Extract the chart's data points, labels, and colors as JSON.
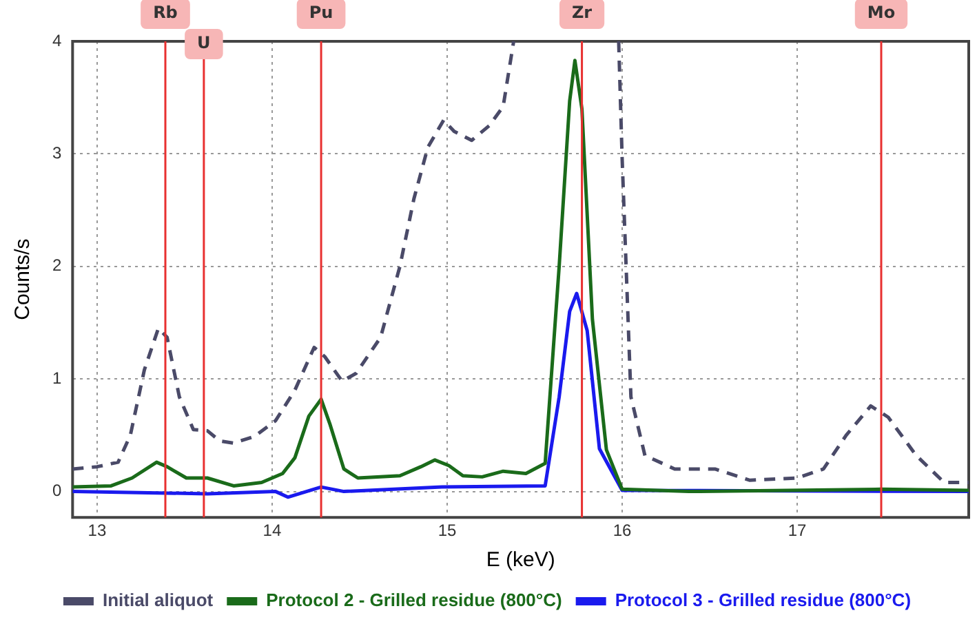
{
  "chart_data": {
    "type": "line",
    "xlabel": "E (keV)",
    "ylabel": "Counts/s",
    "xlim": [
      12.86,
      17.98
    ],
    "ylim": [
      -0.23,
      4
    ],
    "xticks": [
      13,
      14,
      15,
      16,
      17
    ],
    "yticks": [
      0,
      1,
      2,
      3,
      4
    ],
    "grid": true,
    "legend": "bottom",
    "marker": "none",
    "series": [
      {
        "name": "Initial aliquot",
        "color": "#4a4a68",
        "line_style": "dashed",
        "x": [
          12.86,
          13.0,
          13.12,
          13.19,
          13.27,
          13.35,
          13.4,
          13.47,
          13.55,
          13.63,
          13.7,
          13.78,
          13.9,
          14.02,
          14.13,
          14.24,
          14.3,
          14.4,
          14.48,
          14.62,
          14.73,
          14.81,
          14.89,
          14.98,
          15.04,
          15.14,
          15.24,
          15.32,
          15.38,
          15.7,
          15.98,
          16.0,
          16.05,
          16.13,
          16.3,
          16.53,
          16.73,
          17.0,
          17.15,
          17.28,
          17.42,
          17.52,
          17.68,
          17.84,
          17.98
        ],
        "values": [
          0.2,
          0.22,
          0.26,
          0.5,
          1.08,
          1.45,
          1.37,
          0.84,
          0.55,
          0.54,
          0.45,
          0.43,
          0.49,
          0.63,
          0.9,
          1.28,
          1.2,
          0.98,
          1.05,
          1.37,
          2.0,
          2.6,
          3.06,
          3.3,
          3.2,
          3.12,
          3.25,
          3.42,
          4,
          null,
          4,
          2.95,
          0.84,
          0.32,
          0.2,
          0.2,
          0.1,
          0.12,
          0.2,
          0.5,
          0.76,
          0.66,
          0.32,
          0.08,
          0.08
        ]
      },
      {
        "name": "Protocol 2 - Grilled residue (800°C)",
        "color": "#1a6b1a",
        "line_style": "solid",
        "x": [
          12.86,
          13.08,
          13.2,
          13.34,
          13.4,
          13.51,
          13.63,
          13.78,
          13.94,
          14.06,
          14.13,
          14.21,
          14.28,
          14.33,
          14.41,
          14.49,
          14.73,
          14.85,
          14.93,
          15.01,
          15.09,
          15.2,
          15.32,
          15.45,
          15.56,
          15.64,
          15.7,
          15.73,
          15.77,
          15.83,
          15.91,
          16.0,
          16.38,
          17.48,
          17.98
        ],
        "values": [
          0.04,
          0.05,
          0.12,
          0.26,
          0.22,
          0.12,
          0.12,
          0.05,
          0.08,
          0.16,
          0.3,
          0.67,
          0.82,
          0.6,
          0.2,
          0.12,
          0.14,
          0.22,
          0.28,
          0.23,
          0.14,
          0.13,
          0.18,
          0.16,
          0.25,
          2.0,
          3.47,
          3.83,
          3.4,
          1.53,
          0.37,
          0.02,
          0,
          0.02,
          0.01
        ]
      },
      {
        "name": "Protocol 3 - Grilled residue (800°C)",
        "color": "#1a1aee",
        "line_style": "solid",
        "x": [
          12.86,
          13.63,
          14.02,
          14.09,
          14.28,
          14.41,
          14.97,
          15.56,
          15.64,
          15.7,
          15.74,
          15.8,
          15.87,
          16.0,
          17.98
        ],
        "values": [
          0,
          -0.02,
          0,
          -0.05,
          0.04,
          0,
          0.04,
          0.05,
          0.84,
          1.6,
          1.76,
          1.43,
          0.38,
          0.01,
          0
        ]
      }
    ],
    "ref_lines": [
      {
        "axis": "x",
        "value": 13.39,
        "label": "Rb",
        "color": "#e83030"
      },
      {
        "axis": "x",
        "value": 13.61,
        "label": "U",
        "color": "#e83030"
      },
      {
        "axis": "x",
        "value": 14.28,
        "label": "Pu",
        "color": "#e83030"
      },
      {
        "axis": "x",
        "value": 15.77,
        "label": "Zr",
        "color": "#e83030"
      },
      {
        "axis": "x",
        "value": 17.48,
        "label": "Mo",
        "color": "#e83030"
      }
    ]
  }
}
